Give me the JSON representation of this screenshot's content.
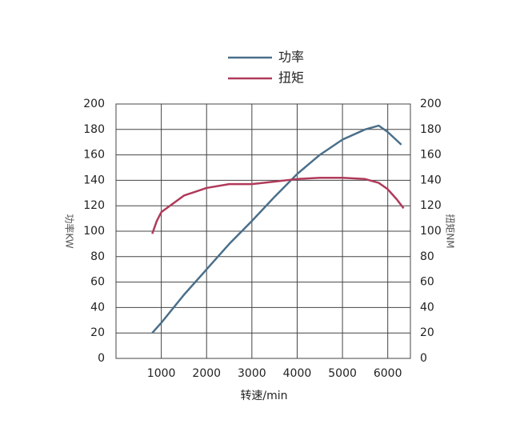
{
  "chart_data": {
    "type": "line",
    "x_label": "转速/min",
    "y_label": "功率KW",
    "y2_label": "扭矩NM",
    "xlim": [
      0,
      6500
    ],
    "xticks": [
      1000,
      2000,
      3000,
      4000,
      5000,
      6000
    ],
    "ylim": [
      0,
      200
    ],
    "yticks": [
      0,
      20,
      40,
      60,
      80,
      100,
      120,
      140,
      160,
      180,
      200
    ],
    "y2lim": [
      0,
      200
    ],
    "y2ticks": [
      0,
      20,
      40,
      60,
      80,
      100,
      120,
      140,
      160,
      180,
      200
    ],
    "grid": true,
    "legend": "top",
    "series": [
      {
        "name": "功率",
        "color": "#4a6f8a",
        "x": [
          800,
          1000,
          1500,
          2000,
          2500,
          3000,
          3500,
          4000,
          4500,
          5000,
          5500,
          5800,
          6000,
          6300
        ],
        "values": [
          20,
          28,
          50,
          70,
          90,
          108,
          127,
          145,
          160,
          172,
          180,
          183,
          178,
          168
        ]
      },
      {
        "name": "扭矩",
        "color": "#b03a5a",
        "axis": "y2",
        "x": [
          800,
          900,
          1000,
          1500,
          2000,
          2500,
          3000,
          3500,
          4000,
          4500,
          5000,
          5500,
          5800,
          6000,
          6200,
          6350
        ],
        "values": [
          98,
          108,
          115,
          128,
          134,
          137,
          137,
          139,
          141,
          142,
          142,
          141,
          138,
          133,
          125,
          118
        ]
      }
    ]
  }
}
